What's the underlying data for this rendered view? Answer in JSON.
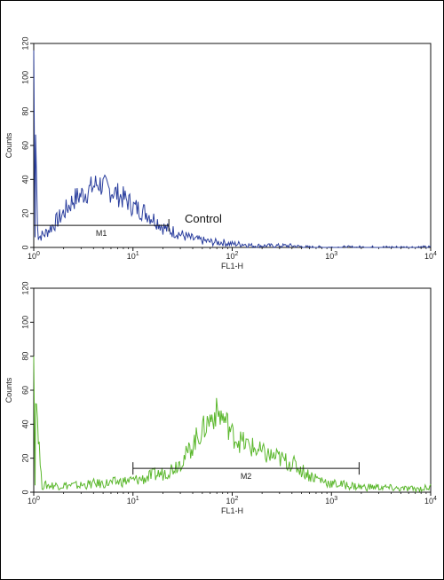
{
  "chart_data": [
    {
      "type": "line",
      "panel": "top",
      "x_scale": "log",
      "xlim": [
        1,
        10000
      ],
      "ylim": [
        0,
        120
      ],
      "xlabel": "FL1-H",
      "ylabel": "Counts",
      "x_ticks": [
        {
          "base": "10",
          "exp": "0"
        },
        {
          "base": "10",
          "exp": "1"
        },
        {
          "base": "10",
          "exp": "2"
        },
        {
          "base": "10",
          "exp": "3"
        },
        {
          "base": "10",
          "exp": "4"
        }
      ],
      "y_ticks": [
        "0",
        "20",
        "40",
        "60",
        "80",
        "100",
        "120"
      ],
      "color": "#2b3f9e",
      "annotation": "Control",
      "gate": {
        "label": "M1",
        "x_start": 1,
        "x_end": 23,
        "y": 13
      },
      "series": [
        {
          "x": [
            1.0,
            1.1,
            1.3,
            1.5,
            1.8,
            2.1,
            2.5,
            3.0,
            3.5,
            4.0,
            4.5,
            5.0,
            5.6,
            6.3,
            7.1,
            8.0,
            9.0,
            10,
            12,
            14,
            16,
            18,
            20,
            23,
            27,
            32,
            40,
            50,
            65,
            80,
            100,
            130,
            160,
            200,
            300,
            400,
            600,
            1000,
            2000,
            5000,
            10000
          ],
          "y": [
            116,
            6,
            8,
            12,
            17,
            22,
            28,
            31,
            33,
            36,
            38,
            36,
            34,
            33,
            31,
            29,
            27,
            24,
            22,
            20,
            17,
            15,
            12,
            10,
            9,
            7,
            5,
            4,
            3,
            3,
            2,
            2,
            1,
            1,
            1,
            1,
            0,
            0,
            0,
            0,
            0
          ]
        }
      ]
    },
    {
      "type": "line",
      "panel": "bottom",
      "x_scale": "log",
      "xlim": [
        1,
        10000
      ],
      "ylim": [
        0,
        120
      ],
      "xlabel": "FL1-H",
      "ylabel": "Counts",
      "x_ticks": [
        {
          "base": "10",
          "exp": "0"
        },
        {
          "base": "10",
          "exp": "1"
        },
        {
          "base": "10",
          "exp": "2"
        },
        {
          "base": "10",
          "exp": "3"
        },
        {
          "base": "10",
          "exp": "4"
        }
      ],
      "y_ticks": [
        "0",
        "20",
        "40",
        "60",
        "80",
        "100",
        "120"
      ],
      "color": "#5cb82e",
      "gate": {
        "label": "M2",
        "x_start": 10,
        "x_end": 1900,
        "y": 14
      },
      "series": [
        {
          "x": [
            1.0,
            1.2,
            1.5,
            2.0,
            3.0,
            4.0,
            5.0,
            7.0,
            10,
            13,
            16,
            20,
            25,
            30,
            35,
            40,
            45,
            50,
            55,
            60,
            70,
            80,
            90,
            100,
            120,
            150,
            200,
            250,
            300,
            350,
            400,
            500,
            600,
            800,
            1000,
            1500,
            2000,
            3000,
            5000,
            8000,
            10000
          ],
          "y": [
            80,
            4,
            4,
            4,
            4,
            5,
            5,
            6,
            7,
            8,
            10,
            11,
            14,
            18,
            22,
            28,
            33,
            36,
            40,
            43,
            47,
            44,
            40,
            34,
            30,
            27,
            23,
            21,
            20,
            18,
            17,
            13,
            10,
            7,
            5,
            4,
            3,
            3,
            2,
            2,
            3
          ]
        }
      ]
    }
  ]
}
